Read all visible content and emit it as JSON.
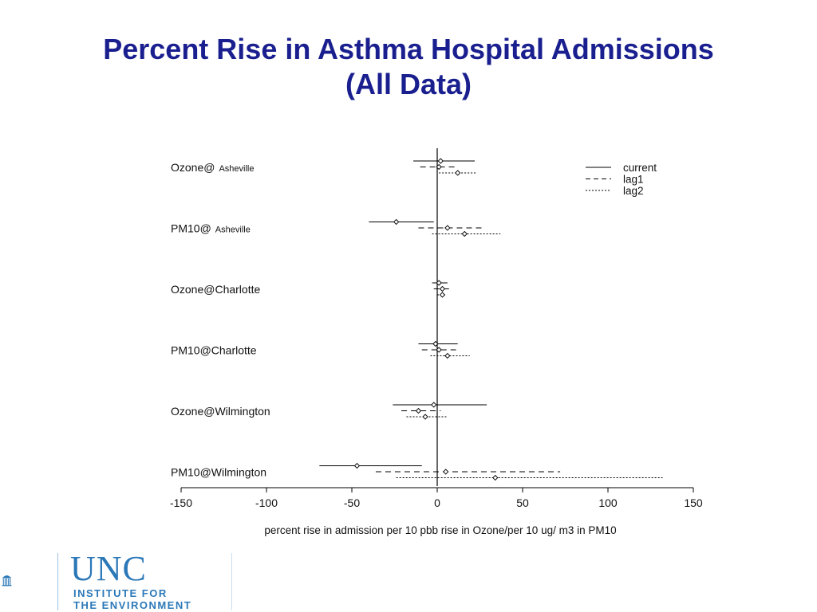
{
  "slide": {
    "title_line1": "Percent Rise in Asthma Hospital Admissions",
    "title_line2": "(All Data)"
  },
  "logo": {
    "name": "UNC",
    "line1": "INSTITUTE FOR",
    "line2": "THE ENVIRONMENT",
    "color": "#2b78b8",
    "icon": "old-well-icon"
  },
  "chart_data": {
    "type": "forest",
    "xlabel": "percent rise in admission per 10 pbb rise in Ozone/per 10 ug/  m3 in PM10",
    "xlim": [
      -150,
      150
    ],
    "xticks": [
      -150,
      -100,
      -50,
      0,
      50,
      100,
      150
    ],
    "legend": {
      "placement": "top-right",
      "entries": [
        {
          "name": "current",
          "style": "solid"
        },
        {
          "name": "lag1",
          "style": "dashed"
        },
        {
          "name": "lag2",
          "style": "dotted"
        }
      ]
    },
    "groups": [
      {
        "label": "Ozone@",
        "label_sub": "Asheville",
        "estimates": [
          {
            "series": "current",
            "est": 2,
            "lo": -14,
            "hi": 22
          },
          {
            "series": "lag1",
            "est": 1,
            "lo": -10,
            "hi": 12
          },
          {
            "series": "lag2",
            "est": 12,
            "lo": 1,
            "hi": 23
          }
        ]
      },
      {
        "label": "PM10@",
        "label_sub": "Asheville",
        "estimates": [
          {
            "series": "current",
            "est": -24,
            "lo": -40,
            "hi": -2
          },
          {
            "series": "lag1",
            "est": 6,
            "lo": -11,
            "hi": 27
          },
          {
            "series": "lag2",
            "est": 16,
            "lo": -3,
            "hi": 37
          }
        ]
      },
      {
        "label": "Ozone@Charlotte",
        "label_sub": "",
        "estimates": [
          {
            "series": "current",
            "est": 1,
            "lo": -3,
            "hi": 6
          },
          {
            "series": "lag1",
            "est": 3,
            "lo": -2,
            "hi": 7
          },
          {
            "series": "lag2",
            "est": 3,
            "lo": 0,
            "hi": 5
          }
        ]
      },
      {
        "label": "PM10@Charlotte",
        "label_sub": "",
        "estimates": [
          {
            "series": "current",
            "est": -1,
            "lo": -11,
            "hi": 12
          },
          {
            "series": "lag1",
            "est": 1,
            "lo": -9,
            "hi": 11
          },
          {
            "series": "lag2",
            "est": 6,
            "lo": -4,
            "hi": 19
          }
        ]
      },
      {
        "label": "Ozone@Wilmington",
        "label_sub": "",
        "estimates": [
          {
            "series": "current",
            "est": -2,
            "lo": -26,
            "hi": 29
          },
          {
            "series": "lag1",
            "est": -11,
            "lo": -21,
            "hi": 2
          },
          {
            "series": "lag2",
            "est": -7,
            "lo": -18,
            "hi": 6
          }
        ]
      },
      {
        "label": "PM10@Wilmington",
        "label_sub": "",
        "estimates": [
          {
            "series": "current",
            "est": -47,
            "lo": -69,
            "hi": -9
          },
          {
            "series": "lag1",
            "est": 5,
            "lo": -36,
            "hi": 72
          },
          {
            "series": "lag2",
            "est": 34,
            "lo": -24,
            "hi": 132
          }
        ]
      }
    ]
  }
}
